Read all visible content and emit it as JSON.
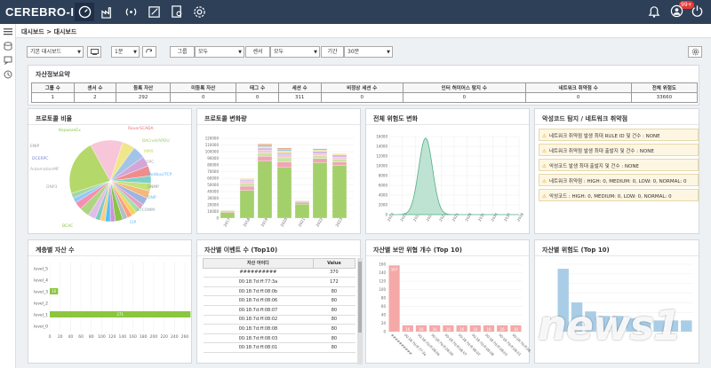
{
  "app": {
    "title": "CEREBRO-IDS",
    "notification_badge": "99+"
  },
  "nav": {
    "icons": [
      "dashboard-icon",
      "factory-icon",
      "wireless-icon",
      "edit-icon",
      "report-search-icon",
      "gear-icon"
    ],
    "right_icons": [
      "bell-icon",
      "user-icon",
      "power-icon"
    ]
  },
  "breadcrumb": "대시보드 > 대시보드",
  "filters": {
    "dashboard_select": "기본 대시보드",
    "interval_select": "1분",
    "group_label": "그룹",
    "group_value": "모두",
    "sensor_label": "센서",
    "sensor_value": "모두",
    "period_label": "기간",
    "period_value": "30분"
  },
  "summary": {
    "title": "자산정보요약",
    "headers": [
      "그룹 수",
      "센서 수",
      "등록 자산",
      "미등록 자산",
      "태그 수",
      "세션 수",
      "비정상 세션 수",
      "인터 허미어스 탐지 수",
      "네트워크 취약점 수",
      "전체 위험도"
    ],
    "values": [
      "1",
      "2",
      "292",
      "0",
      "0",
      "311",
      "0",
      "0",
      "0",
      "33660"
    ]
  },
  "panels": {
    "protocol_ratio": {
      "title": "프로토콜 비율",
      "labels": [
        "KepwareEx",
        "RoverSCADA",
        "BACnet/APDU",
        "MMS",
        "OPC",
        "Modbus/TCP",
        "SNMP",
        "DNP",
        "S7COMM",
        "CIP",
        "ENIP",
        "DCERPC",
        "AutomationMF",
        "DNP3"
      ]
    },
    "protocol_change": {
      "title": "프로토콜 변화량",
      "xlabels": [
        "2017",
        "2018",
        "2019",
        "2020",
        "2021",
        "2022",
        "2023"
      ],
      "ylabels": [
        "120000",
        "110000",
        "100000",
        "90000",
        "80000",
        "70000",
        "60000",
        "50000",
        "40000",
        "30000",
        "20000",
        "10000",
        "0"
      ]
    },
    "risk_change": {
      "title": "전체 위험도 변화",
      "ylabels": [
        "16000",
        "14000",
        "12000",
        "10000",
        "8000",
        "6000",
        "4000",
        "2000",
        "0"
      ],
      "xlabels": [
        "2010",
        "2013",
        "2016",
        "2019",
        "2022",
        "2025",
        "2028",
        "2031",
        "2034",
        "2037",
        "2038"
      ]
    },
    "threats": {
      "title": "악성코드 탐지 / 네트워크 취약점",
      "items": [
        "네트워크 취약점 발생 최대 RULE ID 및 건수 : NONE",
        "네트워크 취약점 발생 최대 출발지 및 건수 : NONE",
        "악성코드 발생 최대 출발지 및 건수 : NONE",
        "네트워크 취약점 : HIGH: 0, MEDIUM: 0, LOW: 0, NORMAL: 0",
        "악성코드 : HIGH: 0, MEDIUM: 0, LOW: 0, NORMAL: 0"
      ]
    },
    "level_assets": {
      "title": "계층별 자산 수",
      "levels": [
        "level_5",
        "level_4",
        "level_3",
        "level_2",
        "level_1",
        "level_0"
      ],
      "values": [
        0,
        0,
        16,
        0,
        271,
        0
      ],
      "xticks": [
        "0",
        "20",
        "40",
        "60",
        "80",
        "100",
        "120",
        "140",
        "160",
        "180",
        "200",
        "220",
        "240",
        "260"
      ]
    },
    "asset_events": {
      "title": "자산별 이벤트 수 (Top10)",
      "headers": [
        "자산 아이디",
        "Value"
      ],
      "rows": [
        [
          "##########",
          "370"
        ],
        [
          "00:18:7d:ff:77:3a",
          "172"
        ],
        [
          "00:18:7d:ff:08:0b",
          "80"
        ],
        [
          "00:18:7d:ff:08:06",
          "80"
        ],
        [
          "00:18:7d:ff:08:07",
          "80"
        ],
        [
          "00:18:7d:ff:08:02",
          "80"
        ],
        [
          "00:18:7d:ff:08:08",
          "80"
        ],
        [
          "00:18:7d:ff:08:03",
          "80"
        ],
        [
          "00:18:7d:ff:08:01",
          "80"
        ]
      ]
    },
    "asset_security": {
      "title": "자산별 보안 위협 개수 (Top 10)",
      "yticks": [
        "160",
        "140",
        "120",
        "100",
        "80",
        "60",
        "40",
        "20",
        "0"
      ],
      "values": [
        167,
        16,
        16,
        16,
        16,
        16,
        16,
        16,
        16,
        16
      ],
      "bar_labels": [
        "167",
        "16",
        "16",
        "16",
        "16",
        "16",
        "16",
        "16",
        "16",
        "16"
      ],
      "xlabels": [
        "##########",
        "00:18:7d:ff:77:3a",
        "00:18:7d:ff:08:0b",
        "00:18:7d:ff:08:06",
        "00:18:7d:ff:08:07",
        "00:18:7d:ff:08:02",
        "00:18:7d:ff:08:08",
        "00:18:7d:ff:08:03",
        "00:18:7d:ff:08:01",
        "00:18:7d:ff:08:04"
      ]
    },
    "asset_risk": {
      "title": "자산별 위험도 (Top 10)",
      "values": [
        28,
        13,
        9,
        7,
        7,
        6,
        5,
        5,
        5,
        5
      ]
    }
  },
  "watermark": "news1",
  "colors": {
    "topbar": "#2d4058",
    "pink": "#f4a9a8",
    "blue": "#a9cde6",
    "green": "#8cc63f",
    "area": "#6bbf9b"
  }
}
